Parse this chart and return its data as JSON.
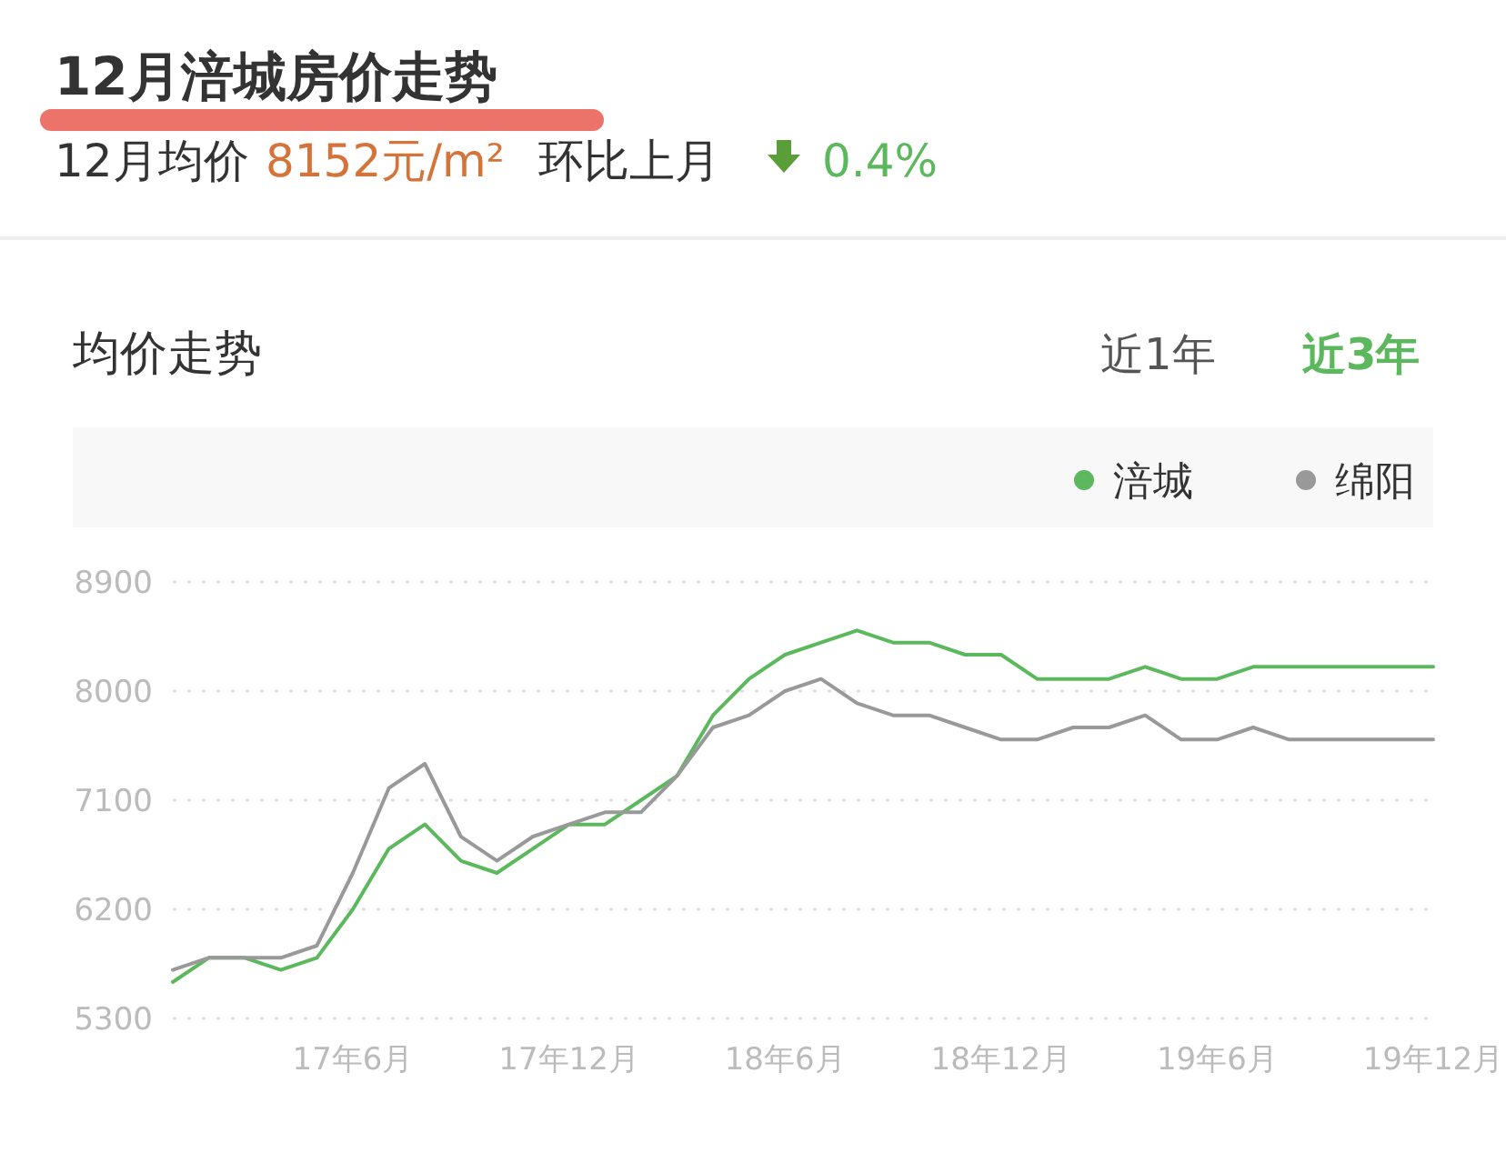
{
  "chart_data": {
    "type": "line",
    "title": "12月涪城房价走势",
    "subtitle": "均价走势",
    "annotations": [
      "12月均价",
      "8152元/m²",
      "环比上月",
      "0.4%",
      "近1年",
      "近3年"
    ],
    "categories": [
      null,
      null,
      null,
      null,
      null,
      "17年6月",
      null,
      null,
      null,
      null,
      null,
      "17年12月",
      null,
      null,
      null,
      null,
      null,
      "18年6月",
      null,
      null,
      null,
      null,
      null,
      "18年12月",
      null,
      null,
      null,
      null,
      null,
      "19年6月",
      null,
      null,
      null,
      null,
      null,
      "19年12月"
    ],
    "series": [
      {
        "name": "涪城",
        "color": "#5cb85c",
        "values": [
          5600,
          5800,
          5800,
          5700,
          5800,
          6200,
          6700,
          6900,
          6600,
          6500,
          6700,
          6900,
          6900,
          7100,
          7300,
          7800,
          8100,
          8300,
          8400,
          8500,
          8400,
          8400,
          8300,
          8300,
          8100,
          8100,
          8100,
          8200,
          8100,
          8100,
          8200,
          8200,
          8200,
          8200,
          8200,
          8200
        ]
      },
      {
        "name": "绵阳",
        "color": "#999999",
        "values": [
          5700,
          5800,
          5800,
          5800,
          5900,
          6500,
          7200,
          7400,
          6800,
          6600,
          6800,
          6900,
          7000,
          7000,
          7300,
          7700,
          7800,
          8000,
          8100,
          7900,
          7800,
          7800,
          7700,
          7600,
          7600,
          7700,
          7700,
          7800,
          7600,
          7600,
          7700,
          7600,
          7600,
          7600,
          7600,
          7600
        ]
      }
    ],
    "ylim": [
      5300,
      8900
    ],
    "yticks": [
      5300,
      6200,
      7100,
      8000,
      8900
    ],
    "grid": "y",
    "legend": "top right",
    "marker": "none",
    "line_style": "solid"
  }
}
